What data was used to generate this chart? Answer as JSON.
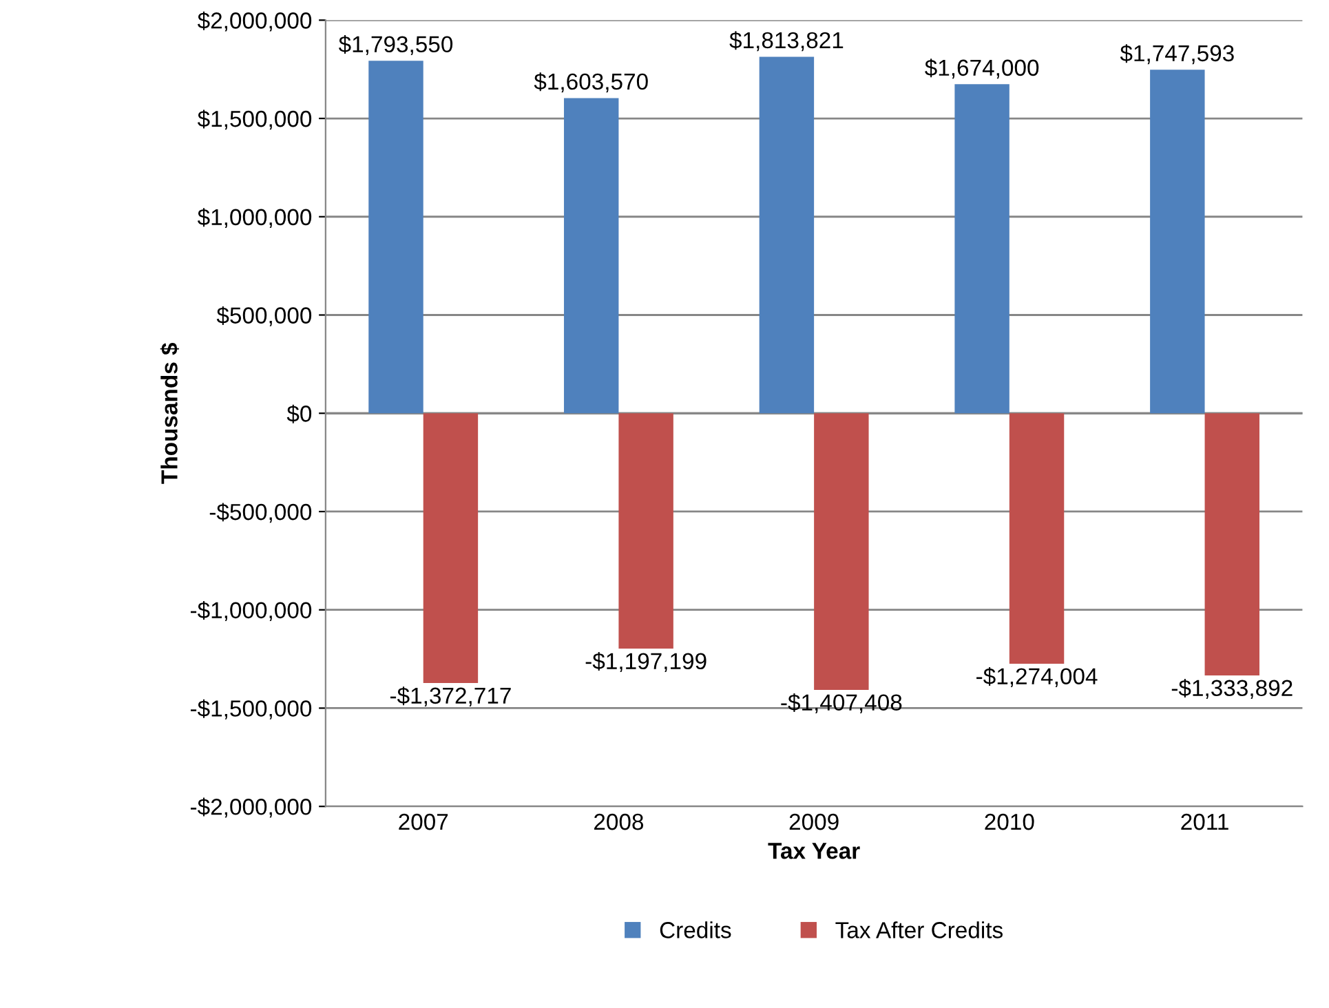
{
  "chart_data": {
    "type": "bar",
    "xlabel": "Tax Year",
    "ylabel": "Thousands $",
    "categories": [
      "2007",
      "2008",
      "2009",
      "2010",
      "2011"
    ],
    "series": [
      {
        "name": "Credits",
        "color": "#4f81bd",
        "values": [
          1793550,
          1603570,
          1813821,
          1674000,
          1747593
        ],
        "value_labels": [
          "$1,793,550",
          "$1,603,570",
          "$1,813,821",
          "$1,674,000",
          "$1,747,593"
        ]
      },
      {
        "name": "Tax After Credits",
        "color": "#c0504d",
        "values": [
          -1372717,
          -1197199,
          -1407408,
          -1274004,
          -1333892
        ],
        "value_labels": [
          "-$1,372,717",
          "-$1,197,199",
          "-$1,407,408",
          "-$1,274,004",
          "-$1,333,892"
        ]
      }
    ],
    "ylim": [
      -2000000,
      2000000
    ],
    "yticks": [
      {
        "value": -2000000,
        "label": "-$2,000,000"
      },
      {
        "value": -1500000,
        "label": "-$1,500,000"
      },
      {
        "value": -1000000,
        "label": "-$1,000,000"
      },
      {
        "value": -500000,
        "label": "-$500,000"
      },
      {
        "value": 0,
        "label": "$0"
      },
      {
        "value": 500000,
        "label": "$500,000"
      },
      {
        "value": 1000000,
        "label": "$1,000,000"
      },
      {
        "value": 1500000,
        "label": "$1,500,000"
      },
      {
        "value": 2000000,
        "label": "$2,000,000"
      }
    ],
    "grid": "y",
    "legend": "bottom"
  }
}
